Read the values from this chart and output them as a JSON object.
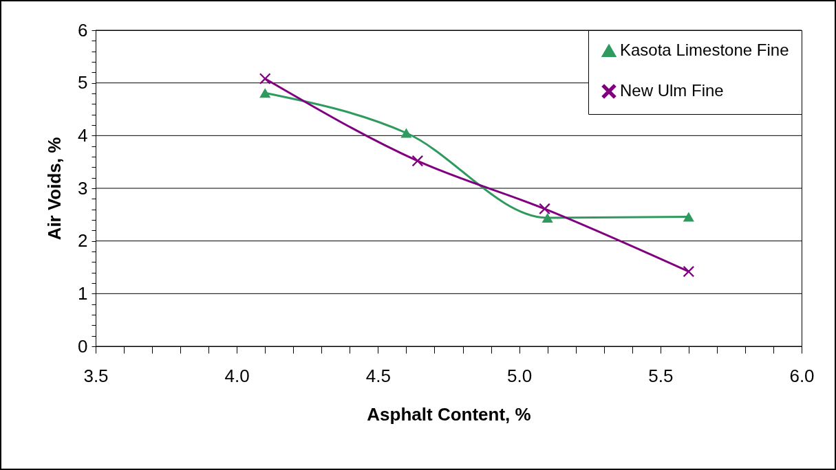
{
  "chart_data": {
    "type": "line",
    "xlabel": "Asphalt Content, %",
    "ylabel": "Air Voids, %",
    "xlim": [
      3.5,
      6.0
    ],
    "ylim": [
      0,
      6
    ],
    "xticks": [
      3.5,
      {
        "value": 3.6,
        "label": null
      },
      {
        "value": 3.7,
        "label": null
      },
      {
        "value": 3.8,
        "label": null
      },
      {
        "value": 3.9,
        "label": null
      },
      {
        "value": 4,
        "label": "4.0"
      },
      {
        "value": 4.1,
        "label": null
      },
      {
        "value": 4.2,
        "label": null
      },
      {
        "value": 4.3,
        "label": null
      },
      {
        "value": 4.4,
        "label": null
      },
      4.5,
      {
        "value": 4.6,
        "label": null
      },
      {
        "value": 4.7,
        "label": null
      },
      {
        "value": 4.8,
        "label": null
      },
      {
        "value": 4.9,
        "label": null
      },
      {
        "value": 5,
        "label": "5.0"
      },
      {
        "value": 5.1,
        "label": null
      },
      {
        "value": 5.2,
        "label": null
      },
      {
        "value": 5.3,
        "label": null
      },
      {
        "value": 5.4,
        "label": null
      },
      5.5,
      {
        "value": 5.6,
        "label": null
      },
      {
        "value": 5.7,
        "label": null
      },
      {
        "value": 5.8,
        "label": null
      },
      {
        "value": 5.9,
        "label": null
      },
      {
        "value": 6,
        "label": "6.0"
      }
    ],
    "yticks": [
      0,
      {
        "value": 0.2,
        "label": null
      },
      {
        "value": 0.4,
        "label": null
      },
      {
        "value": 0.6,
        "label": null
      },
      {
        "value": 0.8,
        "label": null
      },
      1,
      {
        "value": 1.2,
        "label": null
      },
      {
        "value": 1.4,
        "label": null
      },
      {
        "value": 1.6,
        "label": null
      },
      {
        "value": 1.8,
        "label": null
      },
      2,
      {
        "value": 2.2,
        "label": null
      },
      {
        "value": 2.4,
        "label": null
      },
      {
        "value": 2.6,
        "label": null
      },
      {
        "value": 2.8,
        "label": null
      },
      3,
      {
        "value": 3.2,
        "label": null
      },
      {
        "value": 3.4,
        "label": null
      },
      {
        "value": 3.6,
        "label": null
      },
      {
        "value": 3.8,
        "label": null
      },
      4,
      {
        "value": 4.2,
        "label": null
      },
      {
        "value": 4.4,
        "label": null
      },
      {
        "value": 4.6,
        "label": null
      },
      {
        "value": 4.8,
        "label": null
      },
      5,
      {
        "value": 5.2,
        "label": null
      },
      {
        "value": 5.4,
        "label": null
      },
      {
        "value": 5.6,
        "label": null
      },
      {
        "value": 5.8,
        "label": null
      },
      6
    ],
    "grid": "y",
    "legend": "top right",
    "series": [
      {
        "name": "Kasota Limestone Fine",
        "color": "#2e9a5e",
        "marker": "triangle",
        "x": [
          4.1,
          4.6,
          5.1,
          5.6
        ],
        "values": [
          4.81,
          4.05,
          2.44,
          2.46
        ]
      },
      {
        "name": "New Ulm Fine",
        "color": "#800080",
        "marker": "cross",
        "x": [
          4.1,
          4.64,
          5.09,
          5.6
        ],
        "values": [
          5.08,
          3.52,
          2.61,
          1.42
        ]
      }
    ]
  }
}
